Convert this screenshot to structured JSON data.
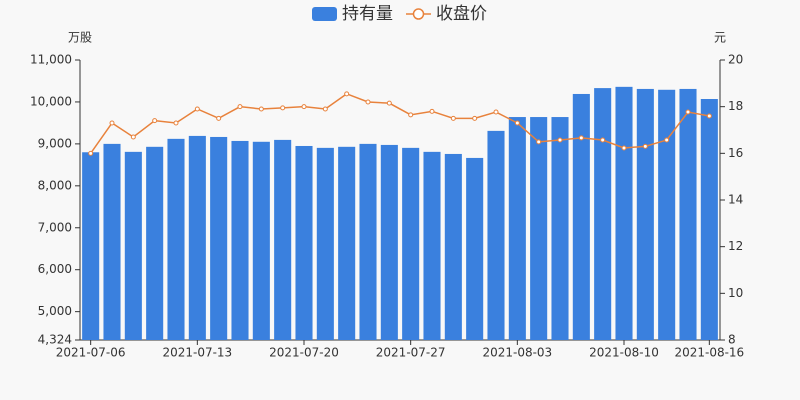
{
  "chart_data": {
    "type": "bar",
    "categories": [
      "2021-07-06",
      null,
      null,
      null,
      null,
      "2021-07-13",
      null,
      null,
      null,
      null,
      "2021-07-20",
      null,
      null,
      null,
      null,
      "2021-07-27",
      null,
      null,
      null,
      null,
      "2021-08-03",
      null,
      null,
      null,
      null,
      "2021-08-10",
      null,
      null,
      null,
      "2021-08-16"
    ],
    "ylabel": "万股",
    "y2label": "元",
    "series": [
      {
        "name": "持有量",
        "type": "bar",
        "color": "#3a80de",
        "values": [
          8800,
          9000,
          8810,
          8930,
          9120,
          9190,
          9165,
          9070,
          9050,
          9095,
          8950,
          8905,
          8930,
          9000,
          8975,
          8905,
          8810,
          8760,
          8665,
          9310,
          9640,
          9640,
          9640,
          10190,
          10330,
          10360,
          10310,
          10290,
          10310,
          10070
        ]
      },
      {
        "name": "收盘价",
        "type": "line",
        "axis": "y2",
        "color": "#e8823c",
        "values": [
          16.0,
          17.3,
          16.7,
          17.4,
          17.3,
          17.9,
          17.5,
          18.0,
          17.9,
          17.95,
          18.0,
          17.9,
          18.55,
          18.2,
          18.15,
          17.65,
          17.8,
          17.5,
          17.5,
          17.77,
          17.3,
          16.49,
          16.57,
          16.66,
          16.57,
          16.23,
          16.3,
          16.57,
          17.77,
          17.6
        ]
      }
    ],
    "ylim": [
      4324,
      11000
    ],
    "yticks": [
      {
        "value": 4324,
        "label": "4,324"
      },
      {
        "value": 5000,
        "label": "5,000"
      },
      {
        "value": 6000,
        "label": "6,000"
      },
      {
        "value": 7000,
        "label": "7,000"
      },
      {
        "value": 8000,
        "label": "8,000"
      },
      {
        "value": 9000,
        "label": "9,000"
      },
      {
        "value": 10000,
        "label": "10,000"
      },
      {
        "value": 11000,
        "label": "11,000"
      }
    ],
    "y2lim": [
      8,
      20
    ],
    "y2ticks": [
      8,
      10,
      12,
      14,
      16,
      18,
      20
    ],
    "grid": false,
    "legend": "top"
  }
}
